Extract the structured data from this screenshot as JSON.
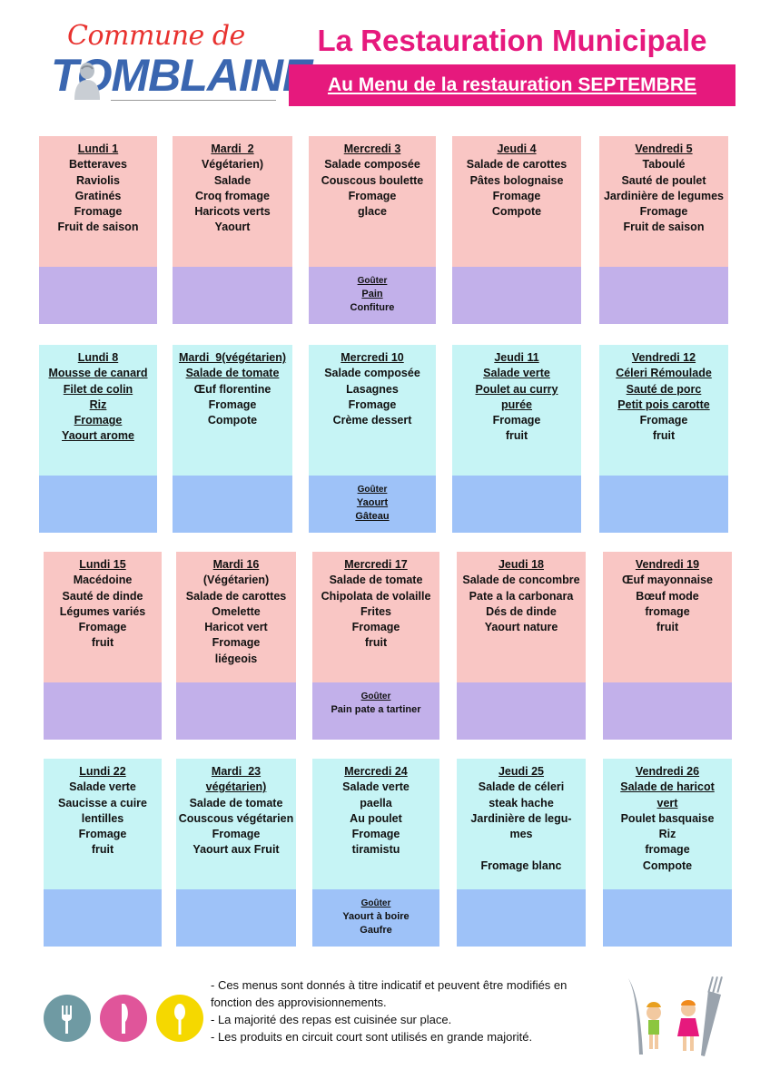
{
  "header": {
    "logo_top": "Commune de",
    "logo_bottom": "TOMBLAINE",
    "title": "La Restauration Municipale",
    "subtitle": "Au Menu  de la restauration SEPTEMBRE"
  },
  "weeks": [
    {
      "days": [
        {
          "lines": [
            "Lundi 1",
            "Betteraves",
            "Raviolis",
            "Gratinés",
            "Fromage",
            "Fruit de saison"
          ],
          "underlined": [
            0
          ]
        },
        {
          "lines": [
            "Mardi  2",
            "Végétarien)",
            "Salade",
            "Croq fromage",
            "Haricots verts",
            "Yaourt"
          ],
          "underlined": [
            0
          ]
        },
        {
          "lines": [
            "Mercredi 3",
            "Salade composée",
            "Couscous boulette",
            "Fromage",
            "glace"
          ],
          "underlined": [
            0
          ]
        },
        {
          "lines": [
            "Jeudi 4",
            "Salade de carottes",
            "Pâtes bolognaise",
            "Fromage",
            "Compote"
          ],
          "underlined": [
            0
          ]
        },
        {
          "lines": [
            "Vendredi 5",
            "Taboulé",
            "Sauté de poulet",
            "Jardinière de legumes",
            "Fromage",
            "Fruit de saison"
          ],
          "underlined": [
            0
          ]
        }
      ],
      "gouter": [
        "Goûter",
        "Pain",
        "Confiture"
      ],
      "gouter_underlined": [
        0,
        1
      ]
    },
    {
      "days": [
        {
          "lines": [
            "Lundi 8",
            "Mousse de canard",
            "Filet de colin",
            "Riz",
            "Fromage",
            "Yaourt arome"
          ],
          "underlined": [
            0,
            1,
            2,
            3,
            4,
            5
          ]
        },
        {
          "lines": [
            "Mardi  9(végétarien)",
            "Salade de tomate",
            "Œuf florentine",
            "Fromage",
            "Compote"
          ],
          "underlined": [
            0,
            1
          ]
        },
        {
          "lines": [
            "Mercredi 10",
            "Salade composée",
            "Lasagnes",
            "Fromage",
            "Crème dessert"
          ],
          "underlined": [
            0
          ]
        },
        {
          "lines": [
            "Jeudi 11",
            "Salade verte",
            "Poulet au curry",
            "purée",
            "Fromage",
            "fruit"
          ],
          "underlined": [
            0,
            1,
            2,
            3
          ]
        },
        {
          "lines": [
            "Vendredi 12",
            "Céleri Rémoulade",
            "Sauté de porc",
            "Petit pois carotte",
            "Fromage",
            "fruit"
          ],
          "underlined": [
            0,
            1,
            2,
            3
          ]
        }
      ],
      "gouter": [
        "Goûter",
        "Yaourt",
        "Gâteau"
      ],
      "gouter_underlined": [
        0,
        1,
        2
      ]
    },
    {
      "days": [
        {
          "lines": [
            "Lundi 15",
            "Macédoine",
            "Sauté de dinde",
            "Légumes variés",
            "Fromage",
            "fruit"
          ],
          "underlined": [
            0
          ]
        },
        {
          "lines": [
            "Mardi 16",
            "(Végétarien)",
            "Salade de carottes",
            "Omelette",
            "Haricot vert",
            "Fromage",
            "liégeois"
          ],
          "underlined": [
            0
          ]
        },
        {
          "lines": [
            "Mercredi 17",
            "Salade de tomate",
            "Chipolata de volaille",
            "Frites",
            "Fromage",
            "fruit"
          ],
          "underlined": [
            0
          ]
        },
        {
          "lines": [
            "Jeudi 18",
            "Salade de concombre",
            "Pate a la carbonara",
            "Dés de dinde",
            "Yaourt nature"
          ],
          "underlined": [
            0
          ]
        },
        {
          "lines": [
            "Vendredi 19",
            "Œuf mayonnaise",
            "Bœuf mode",
            "fromage",
            "fruit"
          ],
          "underlined": [
            0
          ]
        }
      ],
      "gouter": [
        "Goûter",
        "Pain pate a tartiner"
      ],
      "gouter_underlined": [
        0
      ]
    },
    {
      "days": [
        {
          "lines": [
            "Lundi 22",
            "Salade verte",
            "Saucisse a cuire",
            "lentilles",
            "Fromage",
            "fruit"
          ],
          "underlined": [
            0
          ]
        },
        {
          "lines": [
            "Mardi  23",
            "végétarien)",
            "Salade de tomate",
            "Couscous végétarien",
            "Fromage",
            "Yaourt aux Fruit"
          ],
          "underlined": [
            0,
            1
          ]
        },
        {
          "lines": [
            "Mercredi 24",
            "Salade verte",
            "paella",
            "Au poulet",
            "Fromage",
            "tiramistu"
          ],
          "underlined": [
            0
          ]
        },
        {
          "lines": [
            "Jeudi 25",
            "Salade de céleri",
            "steak hache",
            "Jardinière de legu-",
            "mes",
            "",
            "Fromage blanc"
          ],
          "underlined": [
            0
          ]
        },
        {
          "lines": [
            "Vendredi 26",
            "Salade de haricot",
            "vert",
            "Poulet basquaise",
            "Riz",
            "fromage",
            "Compote"
          ],
          "underlined": [
            0,
            1,
            2
          ]
        }
      ],
      "gouter": [
        "Goûter",
        "Yaourt à boire",
        "Gaufre"
      ],
      "gouter_underlined": [
        0
      ]
    }
  ],
  "notes": [
    "- Ces menus sont donnés à titre indicatif et peuvent être modifiés en",
    "fonction des approvisionnements.",
    "- La majorité des repas est cuisinée sur place.",
    "- Les produits en circuit court sont utilisés en grande majorité."
  ],
  "icons": [
    {
      "name": "fork-icon",
      "color": "#6f9aa3"
    },
    {
      "name": "knife-icon",
      "color": "#e0559a"
    },
    {
      "name": "spoon-icon",
      "color": "#f5d800"
    }
  ],
  "colors": {
    "accent": "#e6197d",
    "logo_red": "#e8322f",
    "logo_blue": "#3a66b0",
    "menu_pink": "#f9c6c4",
    "gouter_purple": "#c2b0ea",
    "menu_cyan": "#c6f4f5",
    "gouter_blue": "#9ec2f8"
  }
}
